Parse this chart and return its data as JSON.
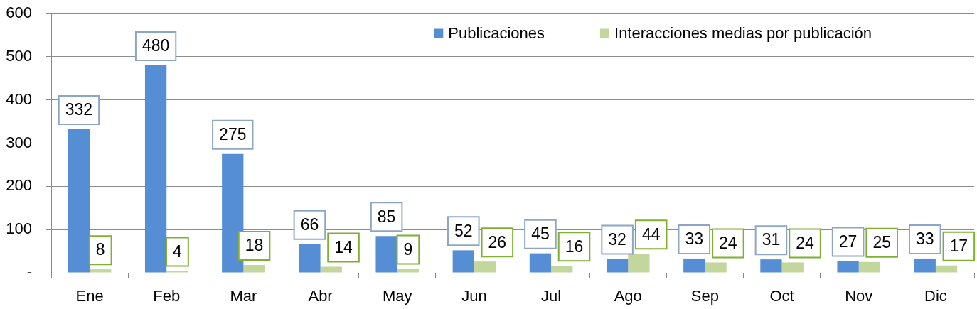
{
  "chart_data": {
    "type": "bar",
    "categories": [
      "Ene",
      "Feb",
      "Mar",
      "Abr",
      "May",
      "Jun",
      "Jul",
      "Ago",
      "Sep",
      "Oct",
      "Nov",
      "Dic"
    ],
    "series": [
      {
        "name": "Publicaciones",
        "color": "#558ed5",
        "values": [
          332,
          480,
          275,
          66,
          85,
          52,
          45,
          32,
          33,
          31,
          27,
          33
        ]
      },
      {
        "name": "Interacciones medias por publicación",
        "color": "#c3d69b",
        "values": [
          8,
          4,
          18,
          14,
          9,
          26,
          16,
          44,
          24,
          24,
          25,
          17
        ]
      }
    ],
    "ylim": [
      0,
      600
    ],
    "yticks": [
      {
        "value": 0,
        "label": "-"
      },
      100,
      200,
      300,
      400,
      500,
      600
    ],
    "grid": "y",
    "legend": "top right",
    "data_labels": true
  }
}
